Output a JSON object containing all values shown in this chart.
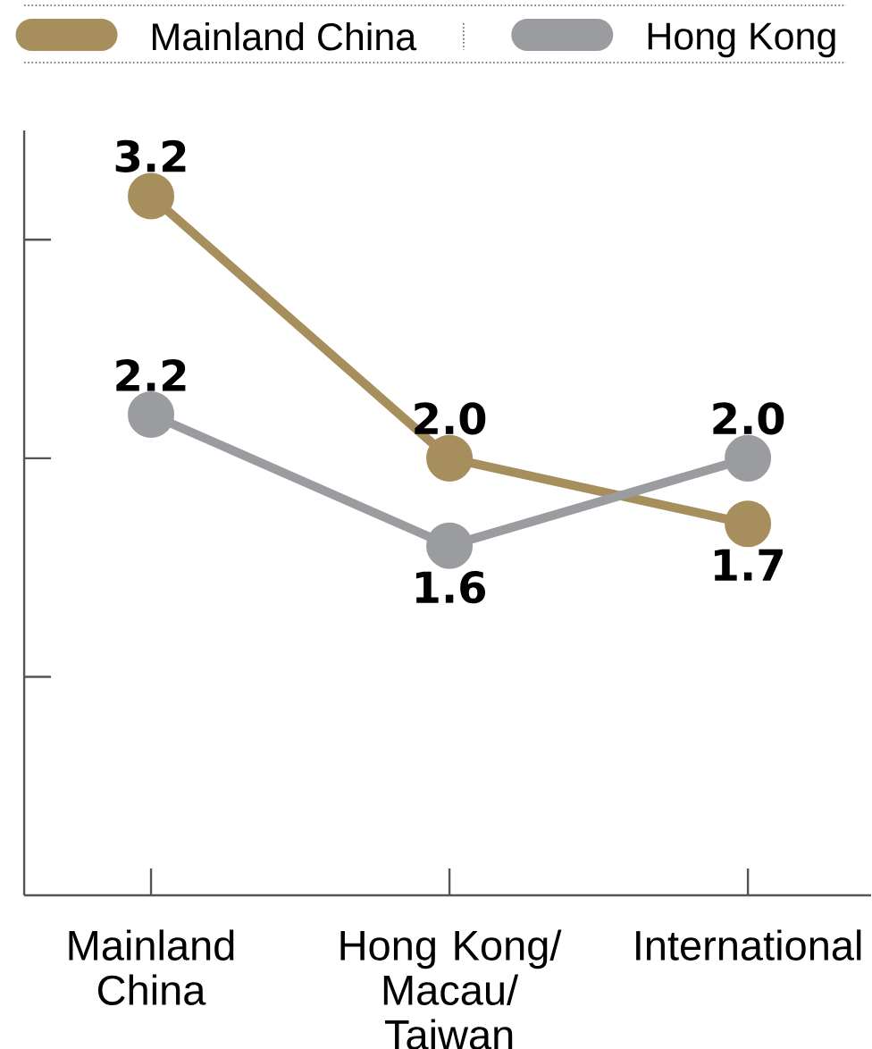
{
  "chart_data": {
    "type": "line",
    "categories": [
      "Mainland China",
      "Hong Kong/ Macau/ Taiwan",
      "International"
    ],
    "series": [
      {
        "name": "Mainland China",
        "color": "#a68f5c",
        "values": [
          3.2,
          2.0,
          1.7
        ],
        "value_labels": [
          "3.2",
          "2.0",
          "1.7"
        ]
      },
      {
        "name": "Hong Kong",
        "color": "#9b9ca0",
        "values": [
          2.2,
          1.6,
          2.0
        ],
        "value_labels": [
          "2.2",
          "1.6",
          "2.0"
        ]
      }
    ],
    "ylim": [
      0,
      3.5
    ],
    "yticks": [
      {
        "value": 1,
        "label": null
      },
      {
        "value": 2,
        "label": null
      },
      {
        "value": 3,
        "label": null
      }
    ],
    "tick_labels": "x",
    "legend": "top",
    "marker": "circle",
    "line_style": "solid"
  }
}
